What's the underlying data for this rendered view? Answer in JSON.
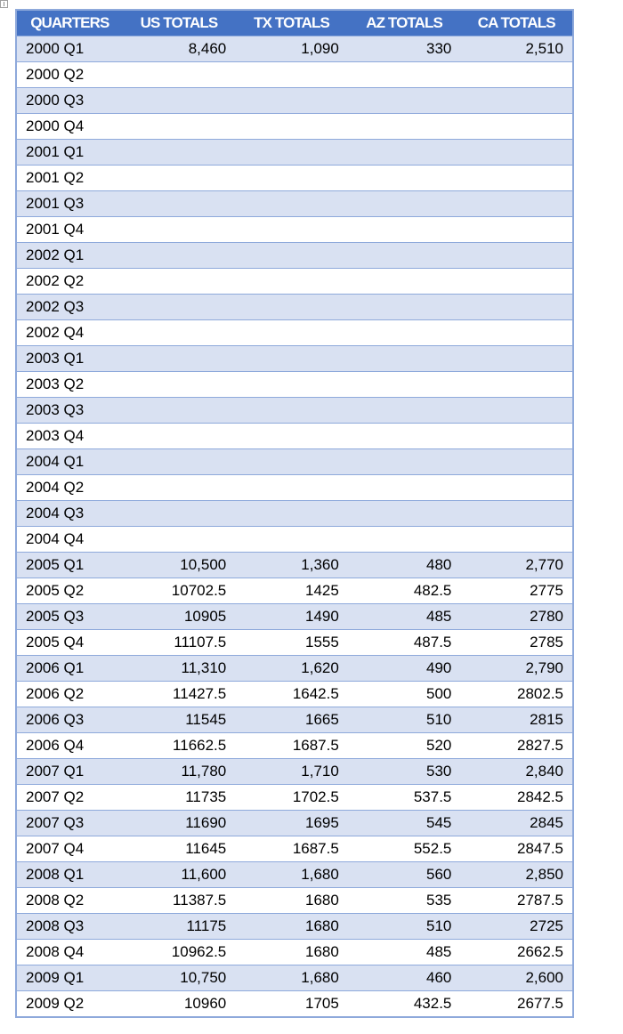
{
  "table": {
    "headers": [
      "QUARTERS",
      "US TOTALS",
      "TX TOTALS",
      "AZ TOTALS",
      "CA TOTALS"
    ],
    "rows": [
      [
        "2000 Q1",
        "8,460",
        "1,090",
        "330",
        "2,510"
      ],
      [
        "2000 Q2",
        "",
        "",
        "",
        ""
      ],
      [
        "2000 Q3",
        "",
        "",
        "",
        ""
      ],
      [
        "2000 Q4",
        "",
        "",
        "",
        ""
      ],
      [
        "2001 Q1",
        "",
        "",
        "",
        ""
      ],
      [
        "2001 Q2",
        "",
        "",
        "",
        ""
      ],
      [
        "2001 Q3",
        "",
        "",
        "",
        ""
      ],
      [
        "2001 Q4",
        "",
        "",
        "",
        ""
      ],
      [
        "2002 Q1",
        "",
        "",
        "",
        ""
      ],
      [
        "2002 Q2",
        "",
        "",
        "",
        ""
      ],
      [
        "2002 Q3",
        "",
        "",
        "",
        ""
      ],
      [
        "2002 Q4",
        "",
        "",
        "",
        ""
      ],
      [
        "2003 Q1",
        "",
        "",
        "",
        ""
      ],
      [
        "2003 Q2",
        "",
        "",
        "",
        ""
      ],
      [
        "2003 Q3",
        "",
        "",
        "",
        ""
      ],
      [
        "2003 Q4",
        "",
        "",
        "",
        ""
      ],
      [
        "2004 Q1",
        "",
        "",
        "",
        ""
      ],
      [
        "2004 Q2",
        "",
        "",
        "",
        ""
      ],
      [
        "2004 Q3",
        "",
        "",
        "",
        ""
      ],
      [
        "2004 Q4",
        "",
        "",
        "",
        ""
      ],
      [
        "2005 Q1",
        "10,500",
        "1,360",
        "480",
        "2,770"
      ],
      [
        "2005 Q2",
        "10702.5",
        "1425",
        "482.5",
        "2775"
      ],
      [
        "2005 Q3",
        "10905",
        "1490",
        "485",
        "2780"
      ],
      [
        "2005 Q4",
        "11107.5",
        "1555",
        "487.5",
        "2785"
      ],
      [
        "2006 Q1",
        "11,310",
        "1,620",
        "490",
        "2,790"
      ],
      [
        "2006 Q2",
        "11427.5",
        "1642.5",
        "500",
        "2802.5"
      ],
      [
        "2006 Q3",
        "11545",
        "1665",
        "510",
        "2815"
      ],
      [
        "2006 Q4",
        "11662.5",
        "1687.5",
        "520",
        "2827.5"
      ],
      [
        "2007 Q1",
        "11,780",
        "1,710",
        "530",
        "2,840"
      ],
      [
        "2007 Q2",
        "11735",
        "1702.5",
        "537.5",
        "2842.5"
      ],
      [
        "2007 Q3",
        "11690",
        "1695",
        "545",
        "2845"
      ],
      [
        "2007 Q4",
        "11645",
        "1687.5",
        "552.5",
        "2847.5"
      ],
      [
        "2008 Q1",
        "11,600",
        "1,680",
        "560",
        "2,850"
      ],
      [
        "2008 Q2",
        "11387.5",
        "1680",
        "535",
        "2787.5"
      ],
      [
        "2008 Q3",
        "11175",
        "1680",
        "510",
        "2725"
      ],
      [
        "2008 Q4",
        "10962.5",
        "1680",
        "485",
        "2662.5"
      ],
      [
        "2009 Q1",
        "10,750",
        "1,680",
        "460",
        "2,600"
      ],
      [
        "2009 Q2",
        "10960",
        "1705",
        "432.5",
        "2677.5"
      ]
    ]
  },
  "colors": {
    "header_bg": "#4472C4",
    "header_text": "#FFFFFF",
    "band_bg": "#D9E1F2",
    "border": "#8EA9DB"
  }
}
